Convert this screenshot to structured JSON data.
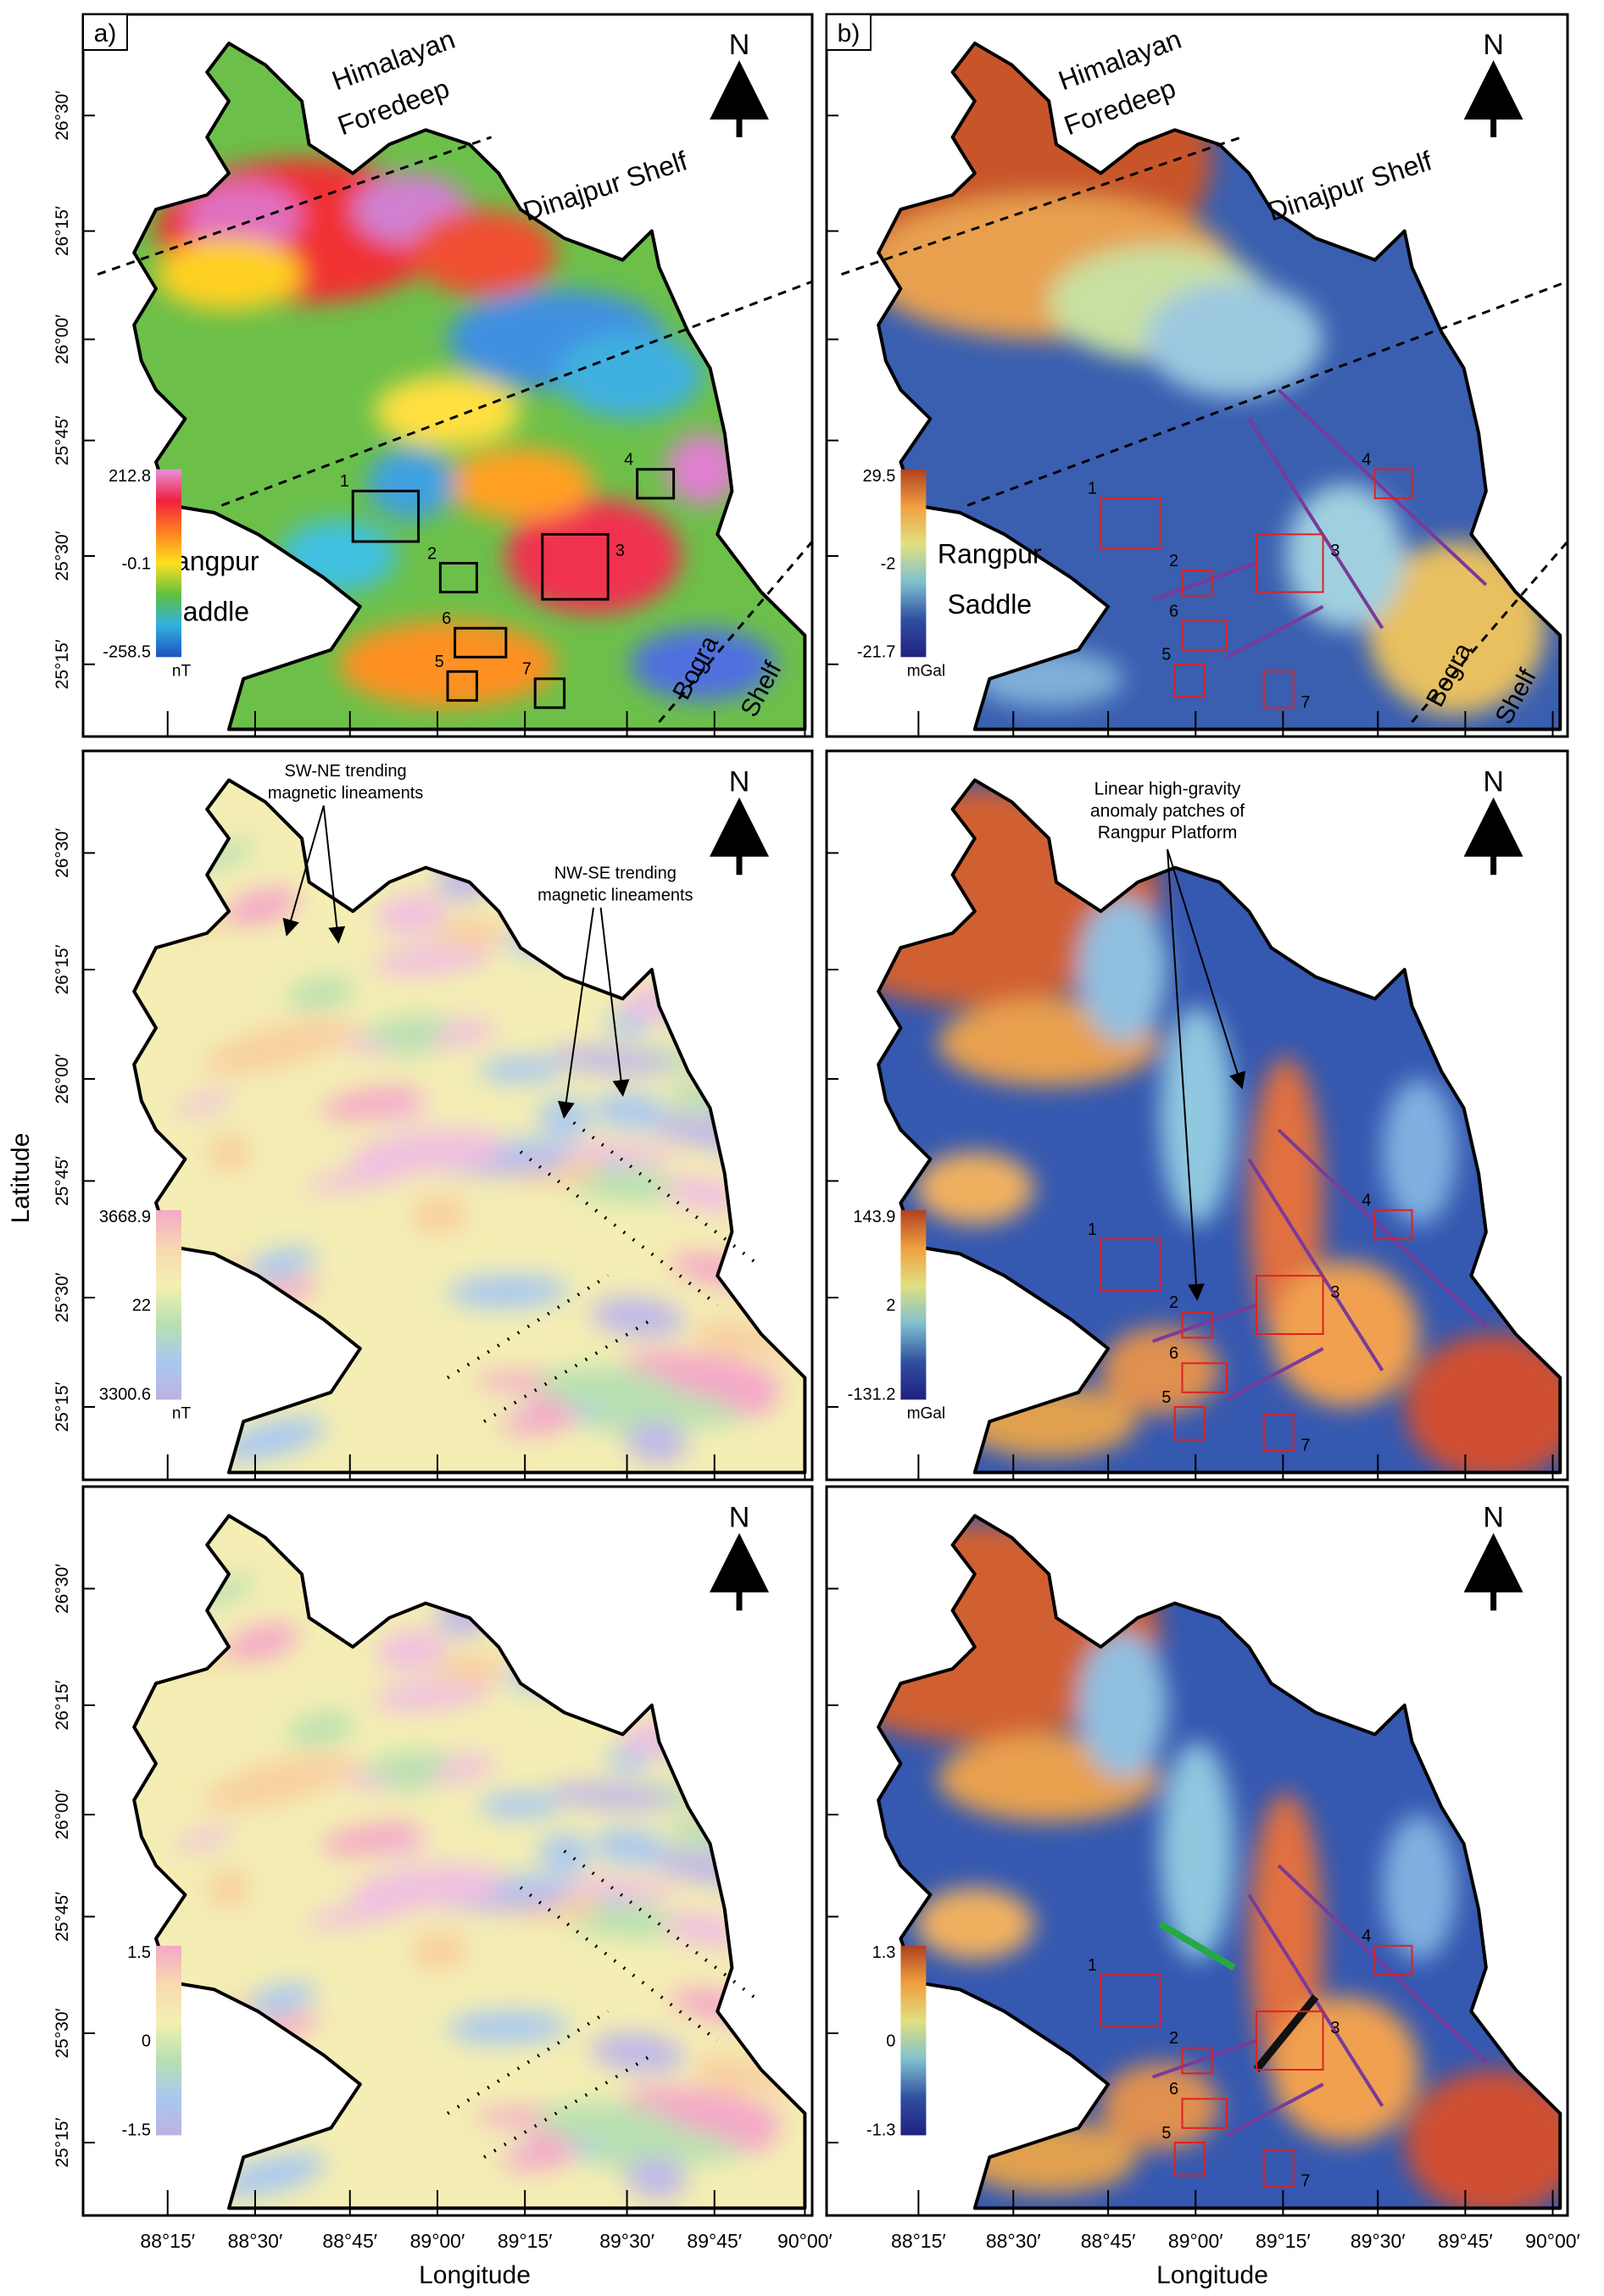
{
  "figure": {
    "latitude_ticks": [
      "26°30′",
      "26°15′",
      "26°00′",
      "25°45′",
      "25°30′",
      "25°15′"
    ],
    "longitude_ticks": [
      "88°15′",
      "88°30′",
      "88°45′",
      "89°00′",
      "89°15′",
      "89°30′",
      "89°45′",
      "90°00′"
    ],
    "x_label": "Longitude",
    "y_label": "Latitude",
    "north": "N"
  },
  "panels": [
    {
      "label": "a)",
      "colorbar": {
        "max": "212.8",
        "mid": "-0.1",
        "min": "-258.5",
        "unit": "nT"
      },
      "annotations": [
        "Himalayan",
        "Foredeep",
        "Dinajpur Shelf",
        "Rangpur",
        "Saddle",
        "Bogra",
        "Shelf"
      ],
      "boxes": [
        "1",
        "2",
        "3",
        "4",
        "5",
        "6",
        "7"
      ]
    },
    {
      "label": "b)",
      "colorbar": {
        "max": "29.5",
        "mid": "-2",
        "min": "-21.7",
        "unit": "mGal"
      },
      "annotations": [
        "Himalayan",
        "Foredeep",
        "Dinajpur Shelf",
        "Rangpur",
        "Saddle",
        "Bogra",
        "Shelf"
      ],
      "boxes": [
        "1",
        "2",
        "3",
        "4",
        "5",
        "6",
        "7"
      ]
    },
    {
      "colorbar": {
        "max": "3668.9",
        "mid": "22",
        "min": "3300.6",
        "unit": "nT"
      },
      "annotations": [
        "SW-NE trending",
        "magnetic lineaments",
        "NW-SE trending",
        "magnetic lineaments"
      ]
    },
    {
      "colorbar": {
        "max": "143.9",
        "mid": "2",
        "min": "-131.2",
        "unit": "mGal"
      },
      "annotations": [
        "Linear high-gravity",
        "anomaly patches of",
        "Rangpur Platform"
      ],
      "boxes": [
        "1",
        "2",
        "3",
        "4",
        "5",
        "6",
        "7"
      ]
    },
    {
      "colorbar": {
        "max": "1.5",
        "mid": "0",
        "min": "-1.5"
      }
    },
    {
      "colorbar": {
        "max": "1.3",
        "mid": "0",
        "min": "-1.3"
      },
      "boxes": [
        "1",
        "2",
        "3",
        "4",
        "5",
        "6",
        "7"
      ]
    }
  ]
}
